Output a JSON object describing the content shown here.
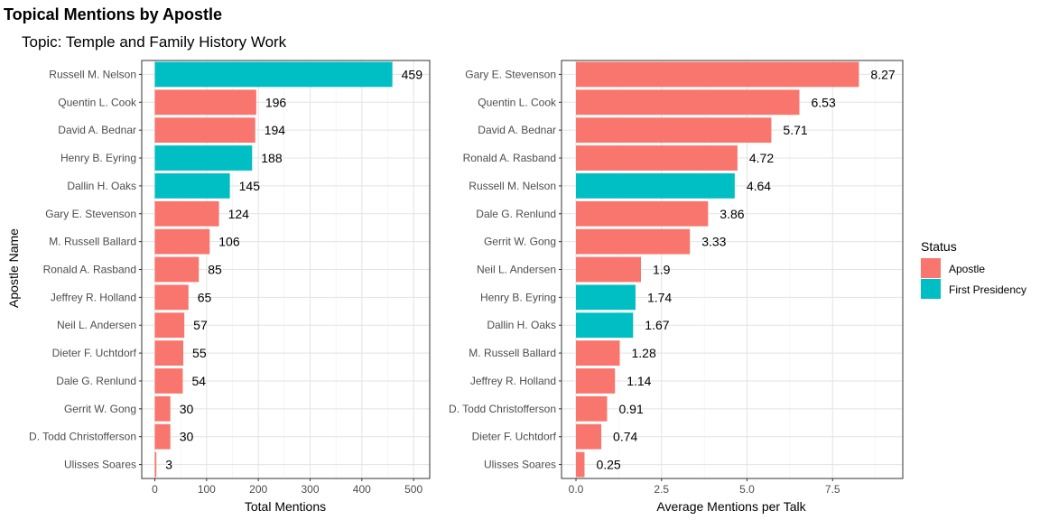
{
  "title": "Topical Mentions by Apostle",
  "subtitle": "Topic: Temple and Family History Work",
  "colors": {
    "Apostle": "#F8766D",
    "First Presidency": "#00BFC4"
  },
  "legend": {
    "title": "Status",
    "position": "right",
    "items": [
      "Apostle",
      "First Presidency"
    ]
  },
  "chart_data": [
    {
      "type": "bar",
      "orientation": "horizontal",
      "xlabel": "Total Mentions",
      "ylabel": "Apostle Name",
      "xlim": [
        0,
        500
      ],
      "xticks": [
        0,
        100,
        200,
        300,
        400,
        500
      ],
      "grid": true,
      "categories": [
        "Russell M. Nelson",
        "Quentin L. Cook",
        "David A. Bednar",
        "Henry B. Eyring",
        "Dallin H. Oaks",
        "Gary E. Stevenson",
        "M. Russell Ballard",
        "Ronald A. Rasband",
        "Jeffrey R. Holland",
        "Neil L. Andersen",
        "Dieter F. Uchtdorf",
        "Dale G. Renlund",
        "Gerrit W. Gong",
        "D. Todd Christofferson",
        "Ulisses Soares"
      ],
      "values": [
        459,
        196,
        194,
        188,
        145,
        124,
        106,
        85,
        65,
        57,
        55,
        54,
        30,
        30,
        3
      ],
      "labels": [
        "459",
        "196",
        "194",
        "188",
        "145",
        "124",
        "106",
        "85",
        "65",
        "57",
        "55",
        "54",
        "30",
        "30",
        "3"
      ],
      "status": [
        "First Presidency",
        "Apostle",
        "Apostle",
        "First Presidency",
        "First Presidency",
        "Apostle",
        "Apostle",
        "Apostle",
        "Apostle",
        "Apostle",
        "Apostle",
        "Apostle",
        "Apostle",
        "Apostle",
        "Apostle"
      ]
    },
    {
      "type": "bar",
      "orientation": "horizontal",
      "xlabel": "Average Mentions per Talk",
      "ylabel": "",
      "xlim": [
        0,
        9
      ],
      "xticks": [
        0,
        2.5,
        5,
        7.5
      ],
      "xtick_labels": [
        "0.0",
        "2.5",
        "5.0",
        "7.5"
      ],
      "grid": true,
      "categories": [
        "Gary E. Stevenson",
        "Quentin L. Cook",
        "David A. Bednar",
        "Ronald A. Rasband",
        "Russell M. Nelson",
        "Dale G. Renlund",
        "Gerrit W. Gong",
        "Neil L. Andersen",
        "Henry B. Eyring",
        "Dallin H. Oaks",
        "M. Russell Ballard",
        "Jeffrey R. Holland",
        "D. Todd Christofferson",
        "Dieter F. Uchtdorf",
        "Ulisses Soares"
      ],
      "values": [
        8.27,
        6.53,
        5.71,
        4.72,
        4.64,
        3.86,
        3.33,
        1.9,
        1.74,
        1.67,
        1.28,
        1.14,
        0.91,
        0.74,
        0.25
      ],
      "labels": [
        "8.27",
        "6.53",
        "5.71",
        "4.72",
        "4.64",
        "3.86",
        "3.33",
        "1.9",
        "1.74",
        "1.67",
        "1.28",
        "1.14",
        "0.91",
        "0.74",
        "0.25"
      ],
      "status": [
        "Apostle",
        "Apostle",
        "Apostle",
        "Apostle",
        "First Presidency",
        "Apostle",
        "Apostle",
        "Apostle",
        "First Presidency",
        "First Presidency",
        "Apostle",
        "Apostle",
        "Apostle",
        "Apostle",
        "Apostle"
      ]
    }
  ]
}
